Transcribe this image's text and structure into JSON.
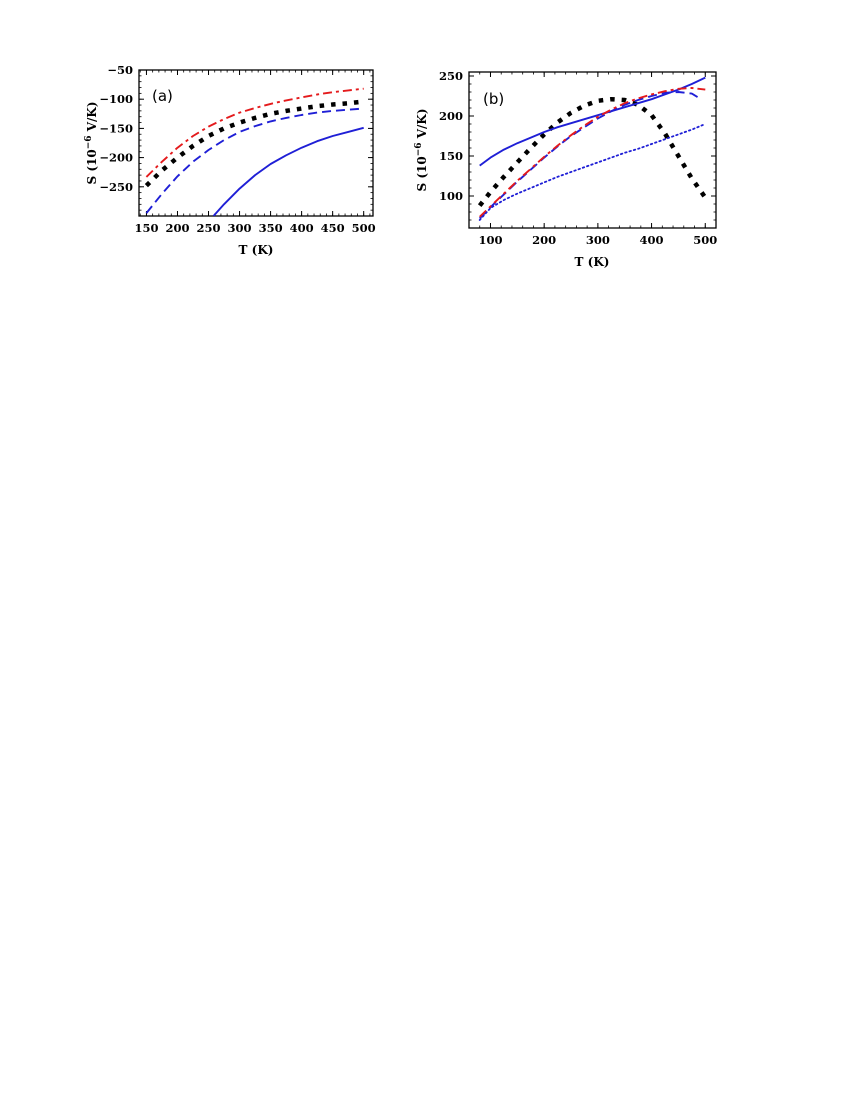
{
  "chart_data": [
    {
      "type": "line",
      "panel_label": "(a)",
      "xlabel": "T (K)",
      "ylabel_main": "S (10",
      "ylabel_sup": "−6",
      "ylabel_tail": " V/K)",
      "xlim": [
        138,
        515
      ],
      "ylim": [
        -300,
        -50
      ],
      "xticks": [
        150,
        200,
        250,
        300,
        350,
        400,
        450,
        500
      ],
      "yticks": [
        -250,
        -200,
        -150,
        -100,
        -50
      ],
      "series": [
        {
          "style": "dashdot",
          "color": "#e41a1c",
          "x": [
            150,
            175,
            200,
            225,
            250,
            275,
            300,
            325,
            350,
            375,
            400,
            425,
            450,
            475,
            500
          ],
          "y": [
            -233,
            -207,
            -183,
            -163,
            -147,
            -134,
            -123,
            -115,
            -108,
            -102,
            -97,
            -92,
            -88,
            -85,
            -82
          ]
        },
        {
          "style": "dotted-square",
          "color": "#000000",
          "x": [
            150,
            175,
            200,
            225,
            250,
            275,
            300,
            325,
            350,
            375,
            400,
            425,
            450,
            475,
            500
          ],
          "y": [
            -248,
            -222,
            -200,
            -180,
            -163,
            -150,
            -140,
            -132,
            -125,
            -120,
            -116,
            -112,
            -109,
            -107,
            -104
          ]
        },
        {
          "style": "dashed",
          "color": "#1f1fd6",
          "x": [
            150,
            175,
            200,
            225,
            250,
            275,
            300,
            325,
            350,
            375,
            400,
            425,
            450,
            475,
            500
          ],
          "y": [
            -295,
            -262,
            -232,
            -207,
            -187,
            -170,
            -156,
            -146,
            -138,
            -132,
            -127,
            -123,
            -120,
            -118,
            -116
          ]
        },
        {
          "style": "solid",
          "color": "#1f1fd6",
          "x": [
            258,
            275,
            300,
            325,
            350,
            375,
            400,
            425,
            450,
            475,
            500
          ],
          "y": [
            -300,
            -280,
            -253,
            -230,
            -211,
            -196,
            -183,
            -172,
            -163,
            -156,
            -149
          ]
        }
      ]
    },
    {
      "type": "line",
      "panel_label": "(b)",
      "xlabel": "T (K)",
      "ylabel_main": "S (10",
      "ylabel_sup": "−6",
      "ylabel_tail": " V/K)",
      "xlim": [
        60,
        520
      ],
      "ylim": [
        60,
        255
      ],
      "xticks": [
        100,
        200,
        300,
        400,
        500
      ],
      "yticks": [
        100,
        150,
        200,
        250
      ],
      "series": [
        {
          "style": "dotted-square",
          "color": "#000000",
          "x": [
            80,
            100,
            125,
            150,
            175,
            200,
            225,
            250,
            275,
            300,
            325,
            350,
            375,
            400,
            425,
            450,
            475,
            500
          ],
          "y": [
            88,
            105,
            124,
            142,
            160,
            177,
            192,
            204,
            213,
            219,
            221,
            220,
            214,
            201,
            178,
            150,
            122,
            98
          ]
        },
        {
          "style": "solid",
          "color": "#1f1fd6",
          "x": [
            80,
            100,
            125,
            150,
            175,
            200,
            225,
            250,
            275,
            300,
            325,
            350,
            375,
            400,
            425,
            450,
            475,
            500
          ],
          "y": [
            138,
            148,
            158,
            166,
            173,
            180,
            186,
            191,
            196,
            201,
            206,
            211,
            216,
            221,
            227,
            233,
            240,
            248
          ]
        },
        {
          "style": "dashed",
          "color": "#1f1fd6",
          "x": [
            80,
            100,
            125,
            150,
            175,
            200,
            225,
            250,
            275,
            300,
            325,
            350,
            375,
            400,
            425,
            450,
            475,
            490
          ],
          "y": [
            72,
            86,
            102,
            118,
            133,
            148,
            162,
            175,
            186,
            197,
            206,
            214,
            220,
            225,
            229,
            230,
            228,
            222
          ]
        },
        {
          "style": "dashdot",
          "color": "#e41a1c",
          "x": [
            80,
            100,
            125,
            150,
            175,
            200,
            225,
            250,
            275,
            300,
            325,
            350,
            375,
            400,
            425,
            450,
            475,
            500
          ],
          "y": [
            74,
            87,
            103,
            119,
            134,
            149,
            163,
            176,
            188,
            199,
            208,
            216,
            222,
            227,
            231,
            234,
            235,
            233
          ]
        },
        {
          "style": "dotted",
          "color": "#1f1fd6",
          "x": [
            80,
            100,
            125,
            150,
            175,
            200,
            225,
            250,
            275,
            300,
            325,
            350,
            375,
            400,
            425,
            450,
            475,
            500
          ],
          "y": [
            70,
            85,
            95,
            103,
            110,
            117,
            124,
            130,
            136,
            142,
            148,
            154,
            159,
            165,
            171,
            177,
            183,
            190
          ]
        }
      ]
    }
  ]
}
